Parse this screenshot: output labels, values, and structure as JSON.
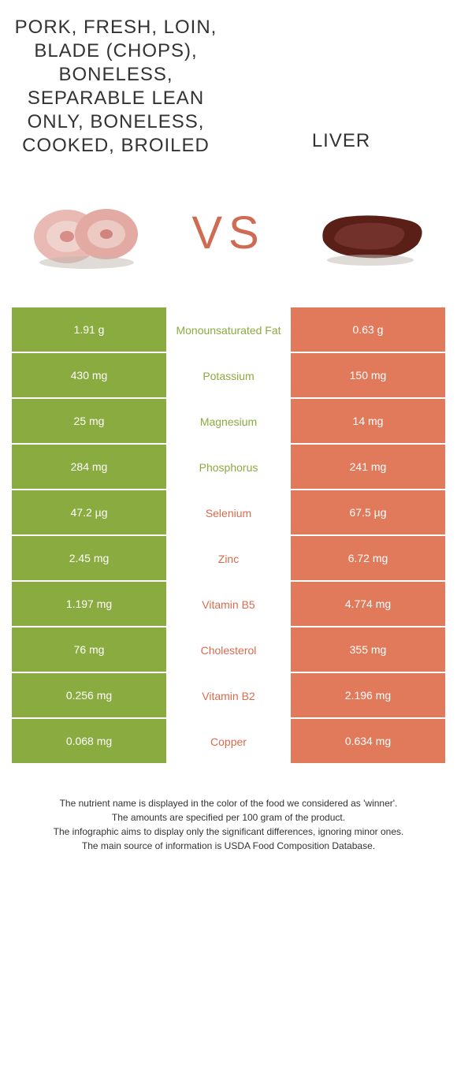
{
  "colors": {
    "left_bg": "#8aab3f",
    "right_bg": "#e1795b",
    "left_text": "#8aab3f",
    "right_text": "#d86b4d",
    "vs_text": "#cf6b52"
  },
  "header": {
    "left_title": "PORK, FRESH, LOIN, BLADE (CHOPS), BONELESS, SEPARABLE LEAN ONLY, BONELESS, COOKED, BROILED",
    "right_title": "LIVER",
    "vs_label": "VS"
  },
  "images": {
    "left_alt": "pork-chops",
    "right_alt": "liver"
  },
  "nutrients": [
    {
      "name": "Monounsaturated Fat",
      "left": "1.91 g",
      "right": "0.63 g",
      "winner": "left"
    },
    {
      "name": "Potassium",
      "left": "430 mg",
      "right": "150 mg",
      "winner": "left"
    },
    {
      "name": "Magnesium",
      "left": "25 mg",
      "right": "14 mg",
      "winner": "left"
    },
    {
      "name": "Phosphorus",
      "left": "284 mg",
      "right": "241 mg",
      "winner": "left"
    },
    {
      "name": "Selenium",
      "left": "47.2 µg",
      "right": "67.5 µg",
      "winner": "right"
    },
    {
      "name": "Zinc",
      "left": "2.45 mg",
      "right": "6.72 mg",
      "winner": "right"
    },
    {
      "name": "Vitamin B5",
      "left": "1.197 mg",
      "right": "4.774 mg",
      "winner": "right"
    },
    {
      "name": "Cholesterol",
      "left": "76 mg",
      "right": "355 mg",
      "winner": "right"
    },
    {
      "name": "Vitamin B2",
      "left": "0.256 mg",
      "right": "2.196 mg",
      "winner": "right"
    },
    {
      "name": "Copper",
      "left": "0.068 mg",
      "right": "0.634 mg",
      "winner": "right"
    }
  ],
  "footer": {
    "line1": "The nutrient name is displayed in the color of the food we considered as 'winner'.",
    "line2": "The amounts are specified per 100 gram of the product.",
    "line3": "The infographic aims to display only the significant differences, ignoring minor ones.",
    "line4": "The main source of information is USDA Food Composition Database."
  }
}
